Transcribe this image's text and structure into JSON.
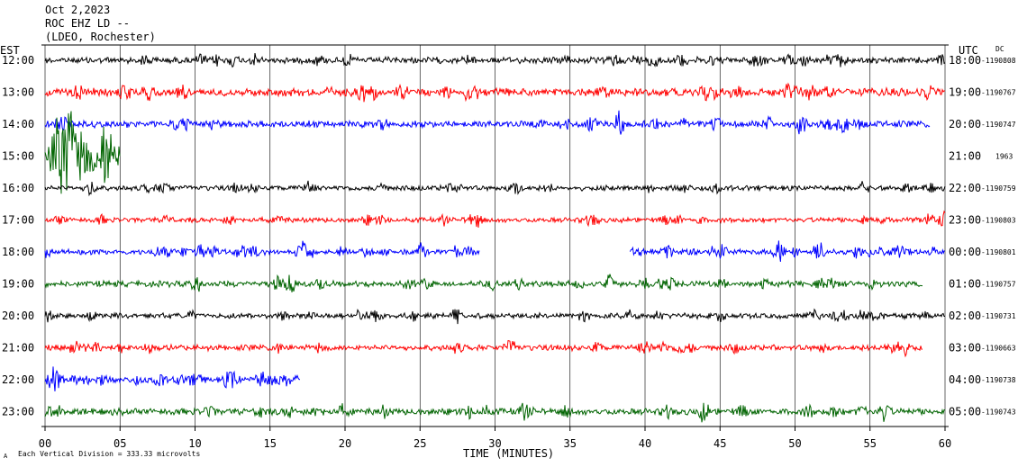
{
  "header": {
    "date": "Oct 2,2023",
    "station": "ROC EHZ LD --",
    "location": "(LDEO, Rochester)"
  },
  "labels": {
    "left_zone": "EST",
    "right_zone": "UTC",
    "dc_header": "DC",
    "xlabel": "TIME (MINUTES)",
    "scale_note": "Each Vertical Division =  333.33 microvolts"
  },
  "colors": {
    "black": "#000000",
    "red": "#ff0000",
    "blue": "#0000ff",
    "green": "#006400"
  },
  "chart_data": {
    "type": "line",
    "title": "ROC EHZ LD --",
    "xlabel": "TIME (MINUTES)",
    "xlim": [
      0,
      60
    ],
    "x_ticks": [
      "00",
      "05",
      "10",
      "15",
      "20",
      "25",
      "30",
      "35",
      "40",
      "45",
      "50",
      "55",
      "60"
    ],
    "grid": "vertical",
    "series": [
      {
        "est": "12:00",
        "utc": "18:00",
        "dc": "-1190808",
        "color": "black",
        "amplitude": 0.3,
        "coverage": [
          0,
          60
        ]
      },
      {
        "est": "13:00",
        "utc": "19:00",
        "dc": "-1190767",
        "color": "red",
        "amplitude": 0.38,
        "coverage": [
          0,
          60
        ]
      },
      {
        "est": "14:00",
        "utc": "20:00",
        "dc": "-1190747",
        "color": "blue",
        "amplitude": 0.32,
        "coverage": [
          0,
          59
        ]
      },
      {
        "est": "15:00",
        "utc": "21:00",
        "dc": "1963",
        "color": "green",
        "amplitude": 0.7,
        "coverage": [
          0,
          5
        ]
      },
      {
        "est": "16:00",
        "utc": "22:00",
        "dc": "-1190759",
        "color": "black",
        "amplitude": 0.25,
        "coverage": [
          0,
          60
        ]
      },
      {
        "est": "17:00",
        "utc": "23:00",
        "dc": "-1190803",
        "color": "red",
        "amplitude": 0.24,
        "coverage": [
          0,
          60
        ]
      },
      {
        "est": "18:00",
        "utc": "00:00",
        "dc": "-1190801",
        "color": "blue",
        "amplitude": 0.26,
        "coverage": [
          0,
          29
        ],
        "coverage2": [
          39,
          60
        ]
      },
      {
        "est": "19:00",
        "utc": "01:00",
        "dc": "-1190757",
        "color": "green",
        "amplitude": 0.28,
        "coverage": [
          0,
          58.5
        ]
      },
      {
        "est": "20:00",
        "utc": "02:00",
        "dc": "-1190731",
        "color": "black",
        "amplitude": 0.26,
        "coverage": [
          0,
          60
        ]
      },
      {
        "est": "21:00",
        "utc": "03:00",
        "dc": "-1190663",
        "color": "red",
        "amplitude": 0.28,
        "coverage": [
          0,
          58.5
        ]
      },
      {
        "est": "22:00",
        "utc": "04:00",
        "dc": "-1190738",
        "color": "blue",
        "amplitude": 0.28,
        "coverage": [
          0,
          17
        ]
      },
      {
        "est": "23:00",
        "utc": "05:00",
        "dc": "-1190743",
        "color": "green",
        "amplitude": 0.32,
        "coverage": [
          0,
          60
        ]
      }
    ]
  }
}
